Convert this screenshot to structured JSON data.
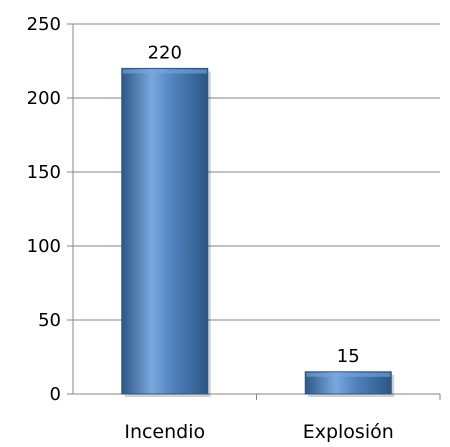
{
  "chart_data": {
    "type": "bar",
    "categories": [
      "Incendio",
      "Explosión"
    ],
    "values": [
      220,
      15
    ],
    "data_labels": [
      "220",
      "15"
    ],
    "ylim": [
      0,
      250
    ],
    "yticks": [
      0,
      50,
      100,
      150,
      200,
      250
    ],
    "ytick_labels": [
      "0",
      "50",
      "100",
      "150",
      "200",
      "250"
    ],
    "grid": true,
    "legend": "none",
    "title": "",
    "xlabel": "",
    "ylabel": "",
    "colors": {
      "bar": "#4F81BD",
      "bar_dark": "#2C5785",
      "bar_light": "#7AA7DE"
    }
  }
}
